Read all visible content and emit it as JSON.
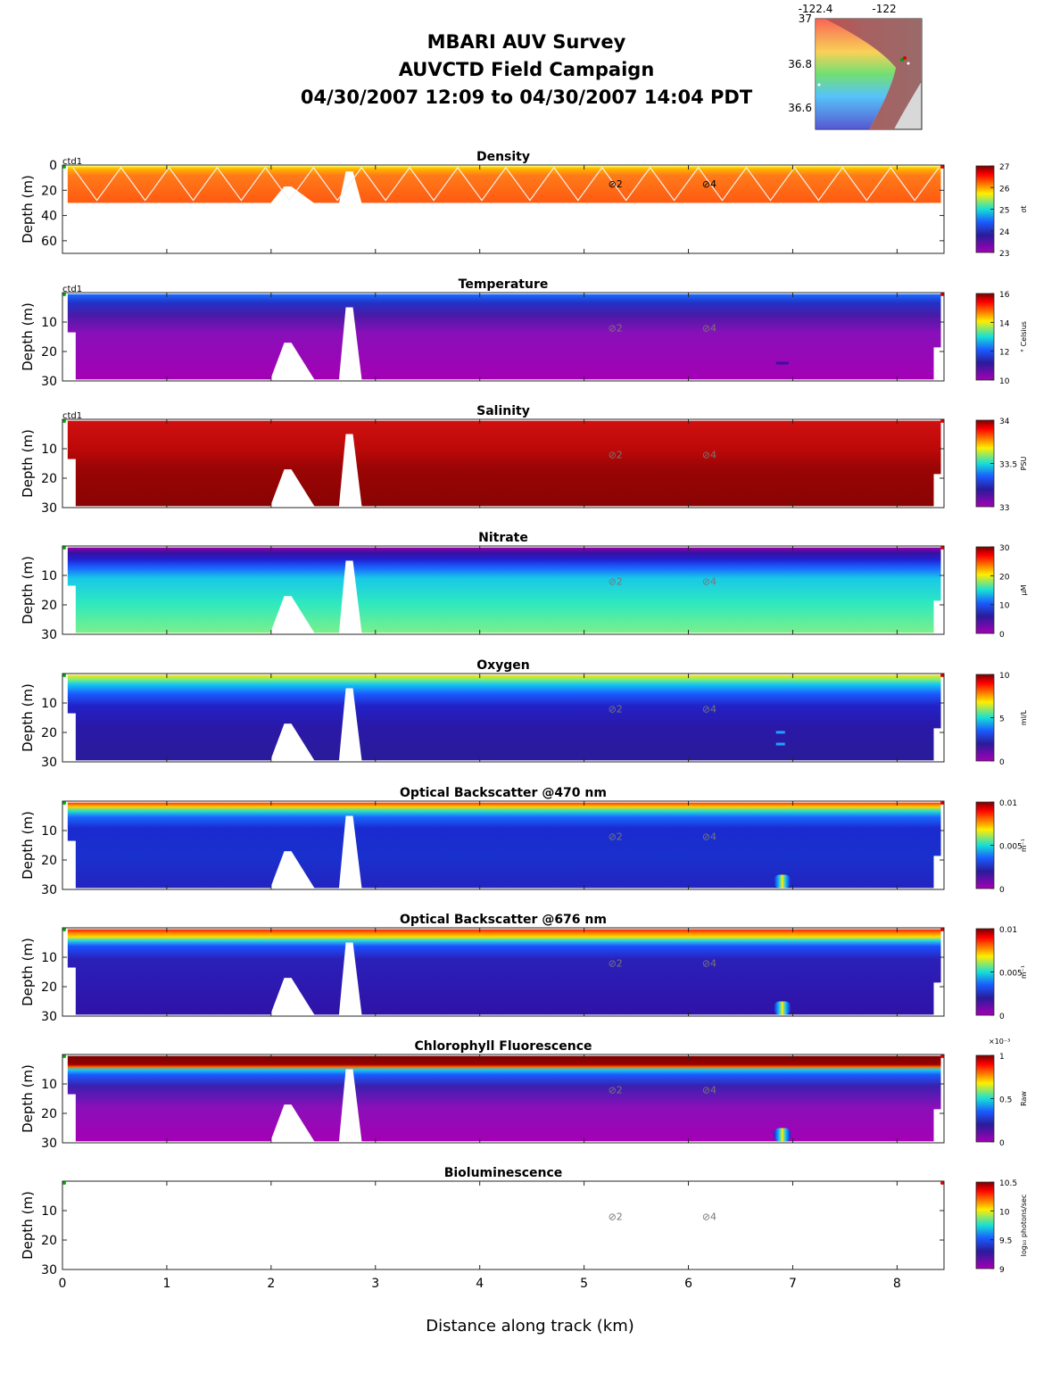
{
  "header": {
    "line1": "MBARI AUV Survey",
    "line2": "AUVCTD Field Campaign",
    "line3": "04/30/2007 12:09  to 04/30/2007 14:04 PDT"
  },
  "inset_map": {
    "lon_ticks": [
      "-122.4",
      "-122"
    ],
    "lat_ticks": [
      "37",
      "36.8",
      "36.6"
    ]
  },
  "chart_data": {
    "type": "heatmap",
    "xlabel": "Distance along track (km)",
    "x_ticks": [
      0,
      1,
      2,
      3,
      4,
      5,
      6,
      7,
      8
    ],
    "xlim": [
      0,
      8.45
    ],
    "ylabel": "Depth (m)",
    "ctd_label": "ctd1",
    "bottom_obstacles": [
      {
        "type": "triangle",
        "left_km": 1.99,
        "peak_km": 2.16,
        "right_km": 2.42,
        "peak_depth_m": 17
      },
      {
        "type": "spike",
        "left_km": 2.65,
        "peak_km": 2.75,
        "right_km": 2.87,
        "peak_depth_m": 5
      }
    ],
    "markers": [
      {
        "x_km": 5.3,
        "depth_m": 12,
        "label": "2"
      },
      {
        "x_km": 6.2,
        "depth_m": 12,
        "label": "4"
      }
    ],
    "panels": [
      {
        "title": "Density",
        "ylim": [
          0,
          70
        ],
        "yticks": [
          0,
          20,
          40,
          60
        ],
        "cbar_ticks": [
          "27",
          "26",
          "25",
          "24",
          "23"
        ],
        "cbar_label": "σt",
        "show_ctd": true,
        "scheme": "density"
      },
      {
        "title": "Temperature",
        "ylim": [
          0,
          30
        ],
        "yticks": [
          10,
          20,
          30
        ],
        "cbar_ticks": [
          "16",
          "14",
          "12",
          "10"
        ],
        "cbar_label": "° Celsius",
        "show_ctd": true,
        "scheme": "temperature"
      },
      {
        "title": "Salinity",
        "ylim": [
          0,
          30
        ],
        "yticks": [
          10,
          20,
          30
        ],
        "cbar_ticks": [
          "34",
          "33.5",
          "33"
        ],
        "cbar_label": "PSU",
        "show_ctd": true,
        "scheme": "salinity"
      },
      {
        "title": "Nitrate",
        "ylim": [
          0,
          30
        ],
        "yticks": [
          10,
          20,
          30
        ],
        "cbar_ticks": [
          "30",
          "20",
          "10",
          "0"
        ],
        "cbar_label": "μM",
        "show_ctd": false,
        "scheme": "nitrate"
      },
      {
        "title": "Oxygen",
        "ylim": [
          0,
          30
        ],
        "yticks": [
          10,
          20,
          30
        ],
        "cbar_ticks": [
          "10",
          "5",
          "0"
        ],
        "cbar_label": "ml/L",
        "show_ctd": false,
        "scheme": "oxygen"
      },
      {
        "title": "Optical Backscatter @470 nm",
        "ylim": [
          0,
          30
        ],
        "yticks": [
          10,
          20,
          30
        ],
        "cbar_ticks": [
          "0.01",
          "0.005",
          "0"
        ],
        "cbar_label": "m⁻¹",
        "show_ctd": false,
        "scheme": "bb470"
      },
      {
        "title": "Optical Backscatter @676 nm",
        "ylim": [
          0,
          30
        ],
        "yticks": [
          10,
          20,
          30
        ],
        "cbar_ticks": [
          "0.01",
          "0.005",
          "0"
        ],
        "cbar_label": "m⁻¹",
        "show_ctd": false,
        "scheme": "bb676"
      },
      {
        "title": "Chlorophyll Fluorescence",
        "ylim": [
          0,
          30
        ],
        "yticks": [
          10,
          20,
          30
        ],
        "cbar_ticks": [
          "1",
          "0.5",
          "0"
        ],
        "cbar_label": "Raw",
        "cbar_exponent": "×10⁻³",
        "show_ctd": false,
        "scheme": "chl"
      },
      {
        "title": "Bioluminescence",
        "ylim": [
          0,
          30
        ],
        "yticks": [
          10,
          20,
          30
        ],
        "cbar_ticks": [
          "10.5",
          "10",
          "9.5",
          "9"
        ],
        "cbar_label": "log₁₀ photons/sec",
        "show_ctd": false,
        "scheme": "empty"
      }
    ]
  }
}
